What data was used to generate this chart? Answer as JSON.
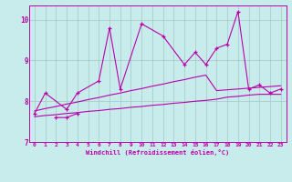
{
  "xlabel": "Windchill (Refroidissement éolien,°C)",
  "background_color": "#c8ecec",
  "grid_color": "#a0c8c8",
  "line_color": "#bb00aa",
  "x_values": [
    0,
    1,
    2,
    3,
    4,
    5,
    6,
    7,
    8,
    9,
    10,
    11,
    12,
    13,
    14,
    15,
    16,
    17,
    18,
    19,
    20,
    21,
    22,
    23
  ],
  "line1_y": [
    7.7,
    8.2,
    null,
    7.8,
    8.2,
    null,
    8.5,
    9.8,
    8.3,
    null,
    9.9,
    null,
    9.6,
    null,
    8.9,
    9.2,
    8.9,
    9.3,
    9.4,
    10.2,
    8.3,
    8.4,
    8.2,
    8.3
  ],
  "line2_y": [
    null,
    null,
    7.6,
    7.6,
    7.7,
    null,
    null,
    null,
    null,
    null,
    null,
    null,
    null,
    null,
    null,
    null,
    null,
    null,
    null,
    null,
    null,
    null,
    null,
    null
  ],
  "trend1_y": [
    7.76,
    7.82,
    7.87,
    7.93,
    7.98,
    8.04,
    8.09,
    8.15,
    8.2,
    8.26,
    8.31,
    8.37,
    8.42,
    8.48,
    8.53,
    8.59,
    8.64,
    8.26,
    8.28,
    8.3,
    8.32,
    8.34,
    8.36,
    8.38
  ],
  "trend2_y": [
    7.62,
    7.65,
    7.67,
    7.7,
    7.72,
    7.75,
    7.77,
    7.8,
    7.82,
    7.85,
    7.87,
    7.9,
    7.92,
    7.95,
    7.97,
    8.0,
    8.02,
    8.05,
    8.1,
    8.12,
    8.15,
    8.17,
    8.17,
    8.17
  ],
  "ylim": [
    7.0,
    10.35
  ],
  "xlim": [
    -0.5,
    23.5
  ],
  "yticks": [
    7,
    8,
    9,
    10
  ],
  "xticks": [
    0,
    1,
    2,
    3,
    4,
    5,
    6,
    7,
    8,
    9,
    10,
    11,
    12,
    13,
    14,
    15,
    16,
    17,
    18,
    19,
    20,
    21,
    22,
    23
  ]
}
